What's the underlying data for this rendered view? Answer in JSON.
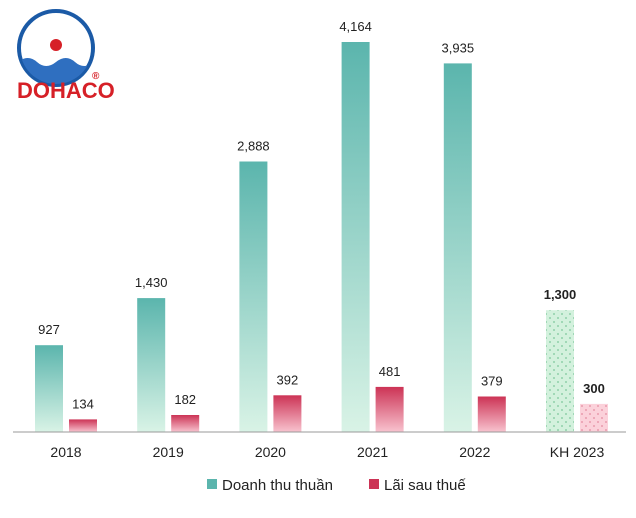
{
  "logo": {
    "brand": "DOHACO",
    "registered": "®"
  },
  "colors": {
    "revenue_top": "#5bb5ad",
    "revenue_bottom": "#d9f3e6",
    "profit_top": "#cc3355",
    "profit_bottom": "#f8c3cf",
    "plan_revenue": "#d3f1dd",
    "plan_revenue_dots": "#7cc79a",
    "plan_profit": "#fbd1da",
    "plan_profit_dots": "#e38aa0",
    "axis": "#9a9a9a",
    "logo_ring": "#1b5aa6",
    "logo_sun": "#d62027",
    "logo_sea": "#2f6fc0"
  },
  "chart_data": {
    "type": "bar",
    "categories": [
      "2018",
      "2019",
      "2020",
      "2021",
      "2022",
      "KH 2023"
    ],
    "series": [
      {
        "name": "Doanh thu thuần",
        "values": [
          927,
          1430,
          2888,
          4164,
          3935,
          1300
        ],
        "labels": [
          "927",
          "1,430",
          "2,888",
          "4,164",
          "3,935",
          "1,300"
        ]
      },
      {
        "name": "Lãi sau thuế",
        "values": [
          134,
          182,
          392,
          481,
          379,
          300
        ],
        "labels": [
          "134",
          "182",
          "392",
          "481",
          "379",
          "300"
        ]
      }
    ],
    "plan_category": "KH 2023",
    "title": "",
    "xlabel": "",
    "ylabel": "",
    "ylim": [
      0,
      4164
    ],
    "grid": false,
    "legend_position": "bottom-center"
  }
}
